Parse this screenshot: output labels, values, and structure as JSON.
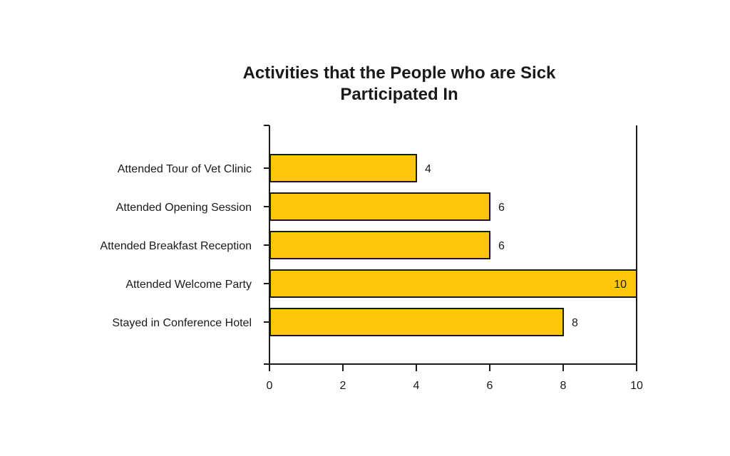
{
  "chart_data": {
    "type": "bar",
    "orientation": "horizontal",
    "title_lines": [
      "Activities that the People who are Sick",
      "Participated In"
    ],
    "categories": [
      "Attended Tour of Vet Clinic",
      "Attended Opening Session",
      "Attended Breakfast Reception",
      "Attended Welcome Party",
      "Stayed in Conference Hotel"
    ],
    "values": [
      4,
      6,
      6,
      10,
      8
    ],
    "xticks": [
      0,
      2,
      4,
      6,
      8,
      10
    ],
    "xlim": [
      0,
      10
    ],
    "xlabel": "",
    "ylabel": "",
    "grid": false,
    "legend": "none",
    "bar_color": "#fdc60b",
    "bar_edge_color": "#1a1a1a"
  }
}
